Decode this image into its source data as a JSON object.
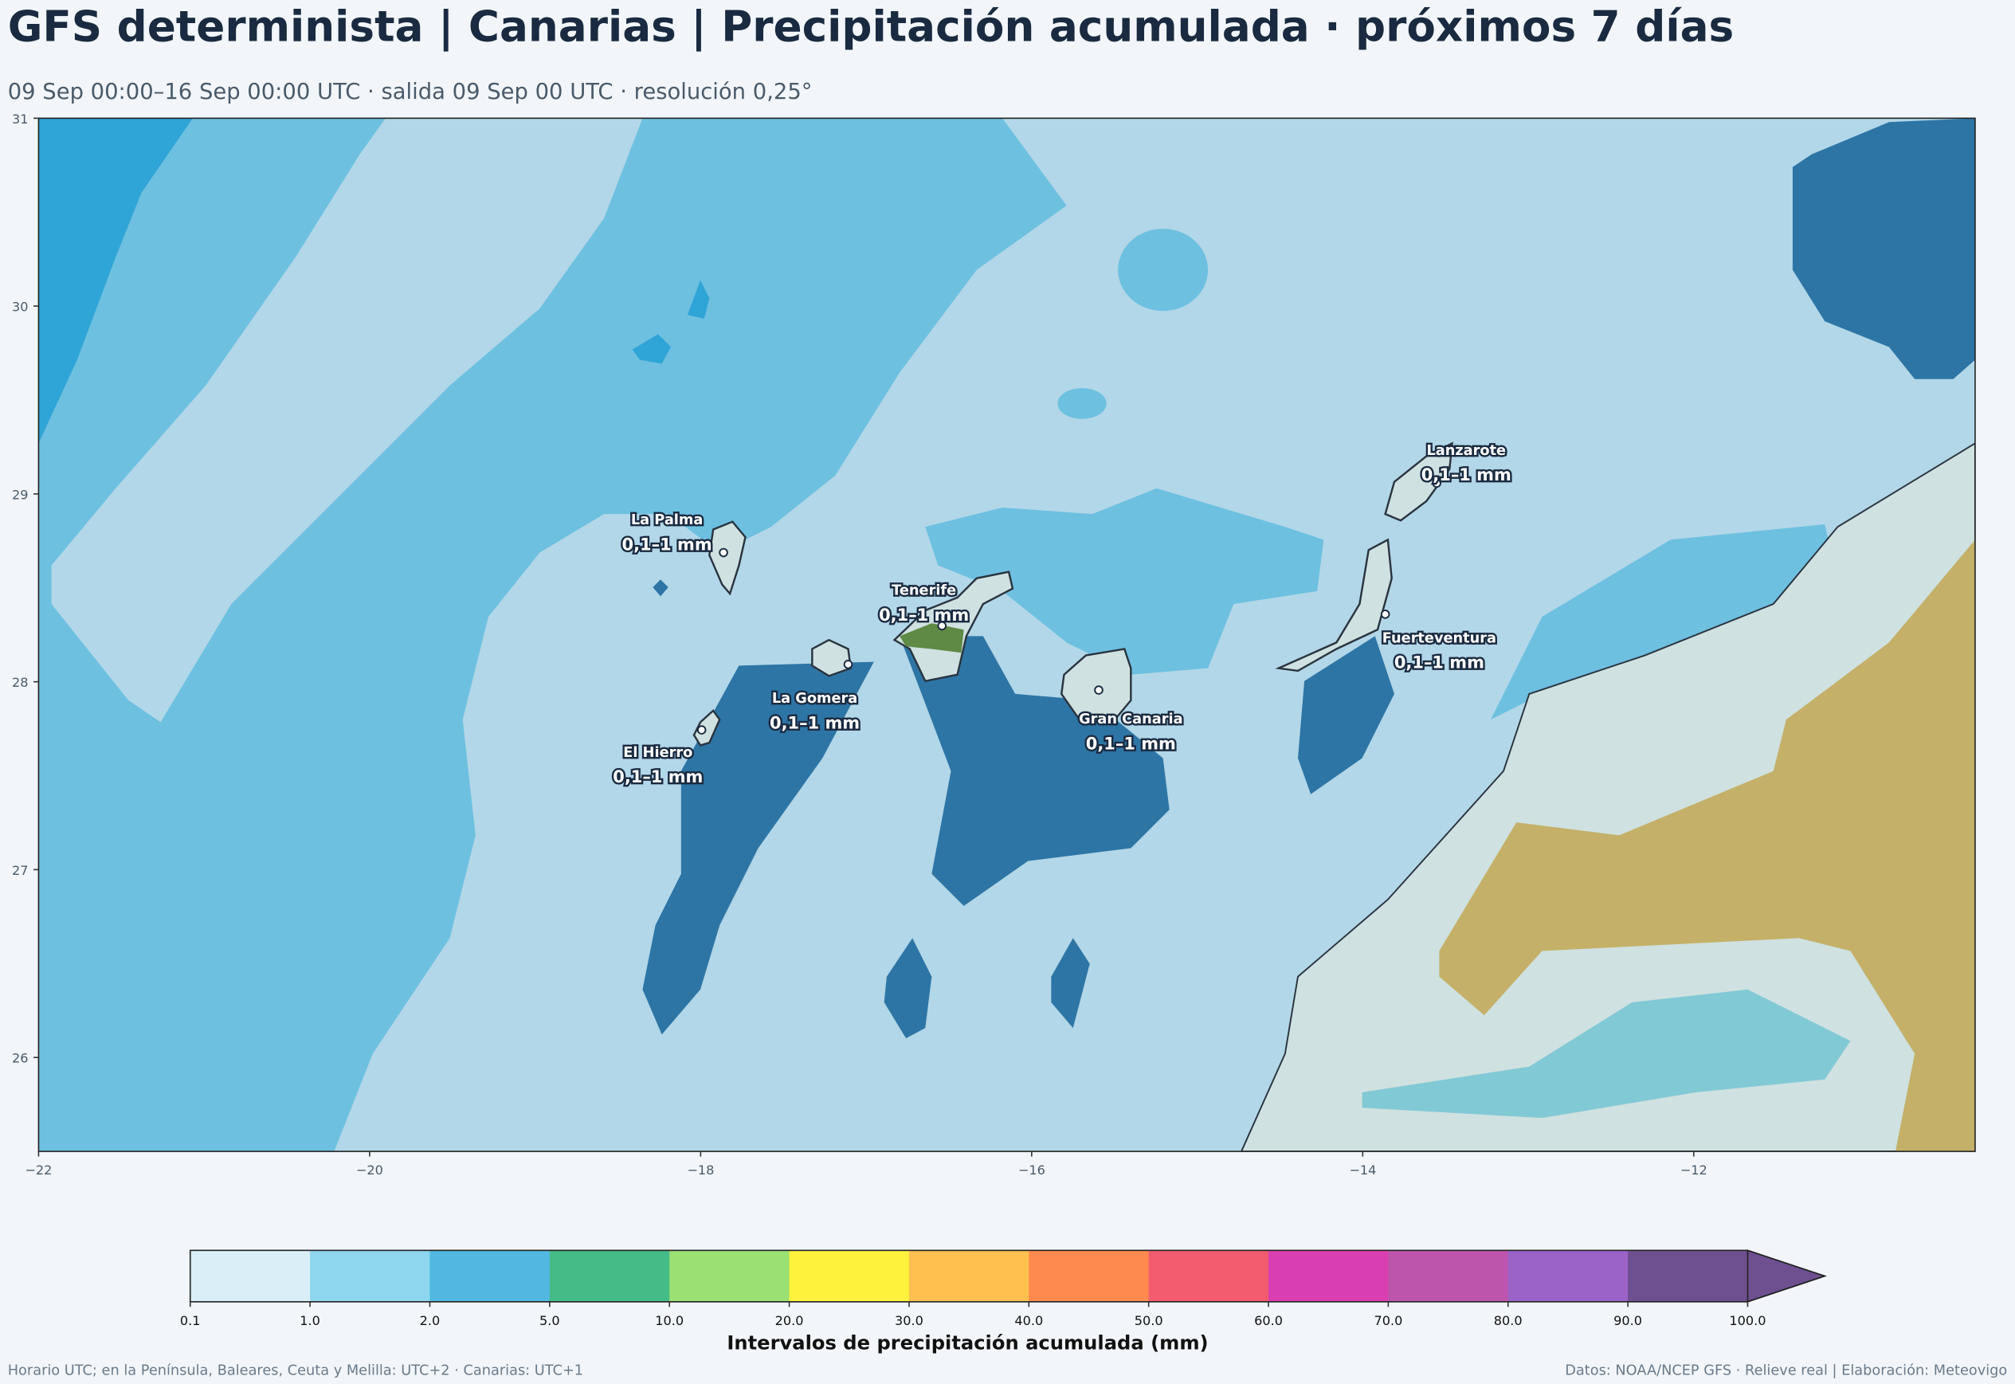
{
  "header": {
    "title": "GFS determinista | Canarias | Precipitación acumulada · próximos 7 días",
    "subtitle": "09 Sep 00:00–16 Sep 00:00 UTC · salida 09 Sep 00 UTC · resolución 0,25°"
  },
  "map": {
    "xlim": [
      -22,
      -10.3
    ],
    "ylim": [
      25.5,
      31
    ],
    "xticks": [
      {
        "value": -22,
        "label": "−22"
      },
      {
        "value": -20,
        "label": "−20"
      },
      {
        "value": -18,
        "label": "−18"
      },
      {
        "value": -16,
        "label": "−16"
      },
      {
        "value": -14,
        "label": "−14"
      },
      {
        "value": -12,
        "label": "−12"
      }
    ],
    "yticks": [
      26,
      27,
      28,
      29,
      30,
      31
    ],
    "islands": [
      {
        "name": "La Palma",
        "range": "0,1–1 mm"
      },
      {
        "name": "Tenerife",
        "range": "0,1–1 mm"
      },
      {
        "name": "La Gomera",
        "range": "0,1–1 mm"
      },
      {
        "name": "El Hierro",
        "range": "0,1–1 mm"
      },
      {
        "name": "Gran Canaria",
        "range": "0,1–1 mm"
      },
      {
        "name": "Fuerteventura",
        "range": "0,1–1 mm"
      },
      {
        "name": "Lanzarote",
        "range": "0,1–1 mm"
      }
    ]
  },
  "colorbar": {
    "label": "Intervalos de precipitación acumulada (mm)",
    "extend": "max",
    "ticks": [
      0.1,
      {
        "value": 1,
        "label": "1.0"
      },
      {
        "value": 2,
        "label": "2.0"
      },
      {
        "value": 5,
        "label": "5.0"
      },
      {
        "value": 10,
        "label": "10.0"
      },
      {
        "value": 20,
        "label": "20.0"
      },
      {
        "value": 30,
        "label": "30.0"
      },
      {
        "value": 40,
        "label": "40.0"
      },
      {
        "value": 50,
        "label": "50.0"
      },
      {
        "value": 60,
        "label": "60.0"
      },
      {
        "value": 70,
        "label": "70.0"
      },
      {
        "value": 80,
        "label": "80.0"
      },
      {
        "value": 90,
        "label": "90.0"
      },
      {
        "value": 100,
        "label": "100.0"
      }
    ],
    "colors": [
      "#d9eef6",
      "#8dd6ee",
      "#52b8e1",
      "#45bb87",
      "#9be073",
      "#fff23d",
      "#ffc04f",
      "#ff8a4d",
      "#f25c6e",
      "#d93fb0",
      "#be55ac",
      "#9b62c8",
      "#6e4f90"
    ]
  },
  "footer": {
    "left": "Horario UTC; en la Península, Baleares, Ceuta y Melilla: UTC+2 · Canarias: UTC+1",
    "right": "Datos: NOAA/NCEP GFS · Relieve real | Elaboración: Meteovigo"
  }
}
